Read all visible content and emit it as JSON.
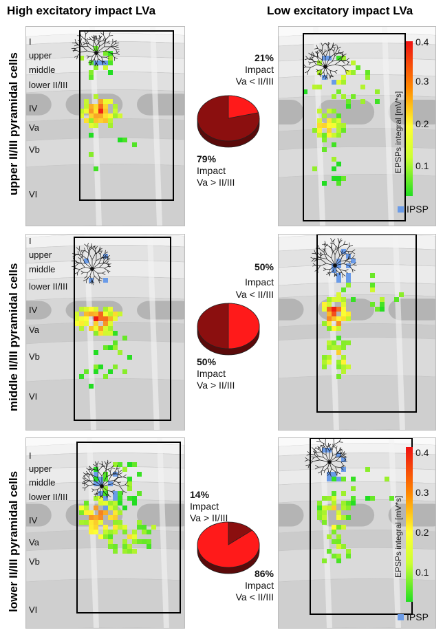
{
  "header": {
    "left_title": "High excitatory impact LVa",
    "right_title": "Low excitatory impact LVa"
  },
  "row_titles": [
    "upper II/III pyramidal cells",
    "middle II/III pyramidal cells",
    "lower II/III pyramidal cells"
  ],
  "layer_labels": [
    "I",
    "upper",
    "middle",
    "lower II/III",
    "IV",
    "Va",
    "Vb",
    "VI"
  ],
  "pies": [
    {
      "top_pct": "21%",
      "top_l1": "Impact",
      "top_l2": "Va < II/III",
      "bottom_pct": "79%",
      "bottom_l1": "Impact",
      "bottom_l2": "Va > II/III",
      "red_fraction": 0.21,
      "dark_fraction": 0.79
    },
    {
      "top_pct": "50%",
      "top_l1": "Impact",
      "top_l2": "Va < II/III",
      "bottom_pct": "50%",
      "bottom_l1": "Impact",
      "bottom_l2": "Va > II/III",
      "red_fraction": 0.5,
      "dark_fraction": 0.5
    },
    {
      "top_pct": "14%",
      "top_l1": "Impact",
      "top_l2": "Va > II/III",
      "bottom_pct": "86%",
      "bottom_l1": "Impact",
      "bottom_l2": "Va < II/III",
      "red_fraction": 0.86,
      "dark_fraction": 0.14
    }
  ],
  "colorbar": {
    "title": "EPSPs integral [mV*s]",
    "ticks": [
      "0.4",
      "0.3",
      "0.2",
      "0.1"
    ],
    "ipsp_label": "IPSP",
    "colors": {
      "low": "#22dd22",
      "mid": "#ffff33",
      "high": "#ee1111",
      "ipsp": "#6a9be8",
      "pie_red": "#ff1a1a",
      "pie_dark": "#8b0f0f"
    }
  }
}
